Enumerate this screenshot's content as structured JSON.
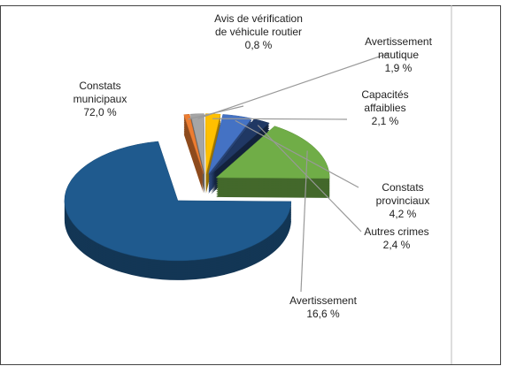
{
  "chart_data": {
    "type": "pie3d",
    "categories": [
      "Avis de vérification de véhicule routier",
      "Avertissement nautique",
      "Capacités affaiblies",
      "Constats provinciaux",
      "Autres crimes",
      "Avertissement",
      "Constats municipaux"
    ],
    "values": [
      0.8,
      1.9,
      2.1,
      4.2,
      2.4,
      16.6,
      72.0
    ],
    "value_labels": [
      "0,8 %",
      "1,9 %",
      "2,1 %",
      "4,2 %",
      "2,4 %",
      "16,6 %",
      "72,0 %"
    ],
    "colors": [
      "#ed7d31",
      "#a5a5a5",
      "#ffc000",
      "#4472c4",
      "#203864",
      "#70ad47",
      "#1f5a8e"
    ]
  }
}
